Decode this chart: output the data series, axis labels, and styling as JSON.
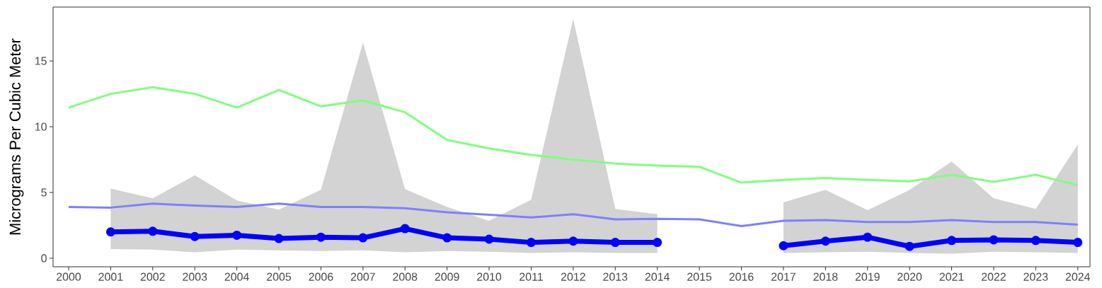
{
  "chart_data": {
    "type": "line",
    "ylabel": "Micrograms Per Cubic Meter",
    "x": [
      2000,
      2001,
      2002,
      2003,
      2004,
      2005,
      2006,
      2007,
      2008,
      2009,
      2010,
      2011,
      2012,
      2013,
      2014,
      2015,
      2016,
      2017,
      2018,
      2019,
      2020,
      2021,
      2022,
      2023,
      2024
    ],
    "xlim": [
      1999.63,
      2024.29
    ],
    "xticks": [
      2000,
      2001,
      2002,
      2003,
      2004,
      2005,
      2006,
      2007,
      2008,
      2009,
      2010,
      2011,
      2012,
      2013,
      2014,
      2015,
      2016,
      2017,
      2018,
      2019,
      2020,
      2021,
      2022,
      2023,
      2024
    ],
    "ylim": [
      -0.65,
      19.1
    ],
    "yticks": [
      0,
      5,
      10,
      15
    ],
    "series": [
      {
        "color": "#7fff7f",
        "values": [
          11.45,
          12.5,
          13.0,
          12.5,
          11.45,
          12.8,
          11.55,
          12.0,
          11.1,
          9.0,
          8.35,
          7.85,
          7.5,
          7.2,
          7.05,
          6.95,
          5.75,
          5.95,
          6.1,
          5.95,
          5.85,
          6.35,
          5.8,
          6.35,
          5.55
        ]
      },
      {
        "color": "#7f7fff",
        "values": [
          3.9,
          3.85,
          4.15,
          4.0,
          3.9,
          4.15,
          3.9,
          3.9,
          3.8,
          3.5,
          3.3,
          3.1,
          3.35,
          2.95,
          3.0,
          2.95,
          2.45,
          2.85,
          2.9,
          2.75,
          2.75,
          2.9,
          2.75,
          2.75,
          2.55
        ]
      },
      {
        "color": "#0000ff",
        "marker": "circle",
        "values": [
          null,
          2.0,
          2.05,
          1.65,
          1.75,
          1.5,
          1.6,
          1.55,
          2.25,
          1.55,
          1.45,
          1.2,
          1.3,
          1.2,
          1.2,
          null,
          null,
          0.95,
          1.3,
          1.6,
          0.9,
          1.35,
          1.4,
          1.35,
          1.2
        ],
        "lower": [
          null,
          0.7,
          0.65,
          0.45,
          0.65,
          0.6,
          0.55,
          0.6,
          0.45,
          0.55,
          0.5,
          0.4,
          0.45,
          0.4,
          0.4,
          null,
          null,
          0.4,
          0.45,
          0.5,
          0.4,
          0.35,
          0.5,
          0.45,
          0.4
        ],
        "upper": [
          null,
          5.3,
          4.55,
          6.3,
          4.4,
          3.7,
          5.2,
          16.4,
          5.25,
          3.9,
          2.85,
          4.45,
          18.2,
          3.75,
          3.35,
          null,
          null,
          4.25,
          5.2,
          3.65,
          5.2,
          7.35,
          4.55,
          3.75,
          8.65
        ]
      }
    ]
  }
}
